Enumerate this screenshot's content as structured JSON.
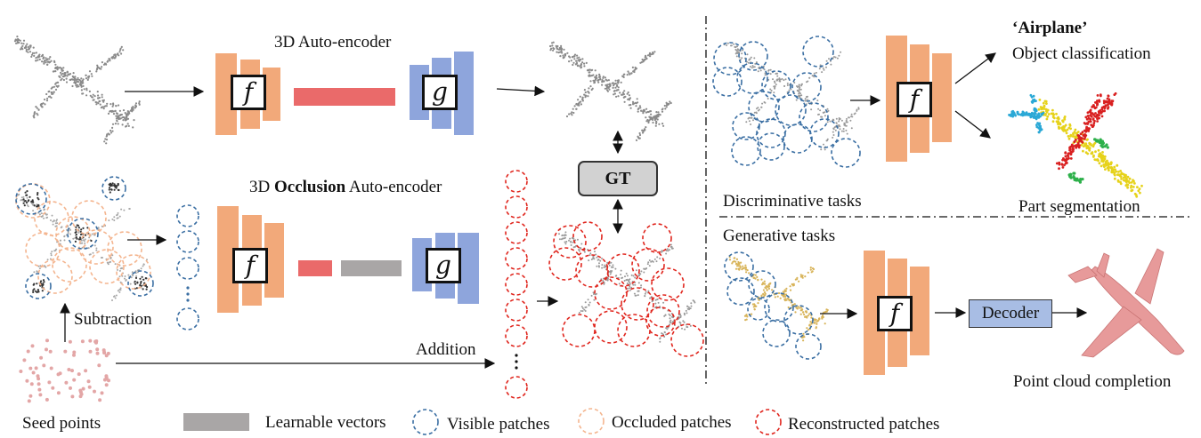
{
  "labels": {
    "ae_title": "3D Auto-encoder",
    "occ_title_pre": "3D ",
    "occ_title_bold": "Occlusion",
    "occ_title_post": " Auto-encoder",
    "subtraction": "Subtraction",
    "addition": "Addition",
    "seed_points": "Seed points",
    "gt": "GT",
    "discriminative": "Discriminative tasks",
    "generative": "Generative tasks",
    "airplane": "‘Airplane’",
    "object_classification": "Object classification",
    "part_segmentation": "Part segmentation",
    "decoder": "Decoder",
    "completion": "Point cloud completion"
  },
  "encoder": {
    "f": "f",
    "g": "g"
  },
  "legend": {
    "learnable": "Learnable vectors",
    "visible": "Visible patches",
    "occluded": "Occluded patches",
    "reconstructed": "Reconstructed patches"
  },
  "colors": {
    "encoder_orange": "#f2a97a",
    "decoder_blue": "#8ea5dc",
    "latent_red": "#ea6a6a",
    "learnable_gray": "#a9a6a6",
    "visible_blue": "#3b6fa3",
    "occluded_orange": "#f4b58f",
    "reconstructed_red": "#e0261e",
    "seg_blue": "#2aa8d6",
    "seg_yellow": "#e6d21a",
    "seg_red": "#d92020",
    "seg_green": "#2db04a",
    "completion_pink": "#e79a9a",
    "decoder_box": "#a8bde4"
  }
}
